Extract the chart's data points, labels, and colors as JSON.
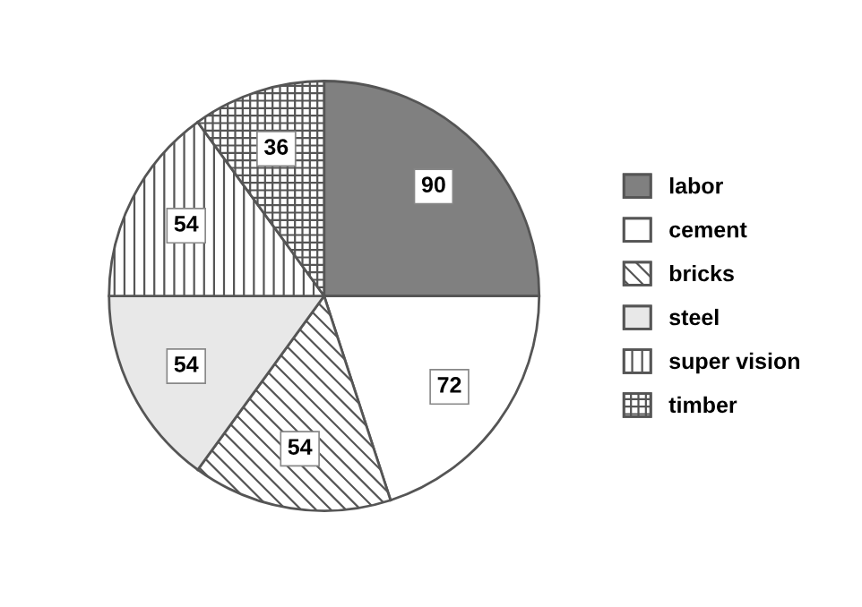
{
  "chart_data": {
    "type": "pie",
    "categories": [
      "labor",
      "cement",
      "bricks",
      "steel",
      "super vision",
      "timber"
    ],
    "values": [
      90,
      72,
      54,
      54,
      54,
      36
    ],
    "colors": [
      "#808080",
      "#ffffff",
      "#ffffff",
      "#e8e8e8",
      "#ffffff",
      "#ffffff"
    ],
    "data_labels": true,
    "legend": "right"
  }
}
